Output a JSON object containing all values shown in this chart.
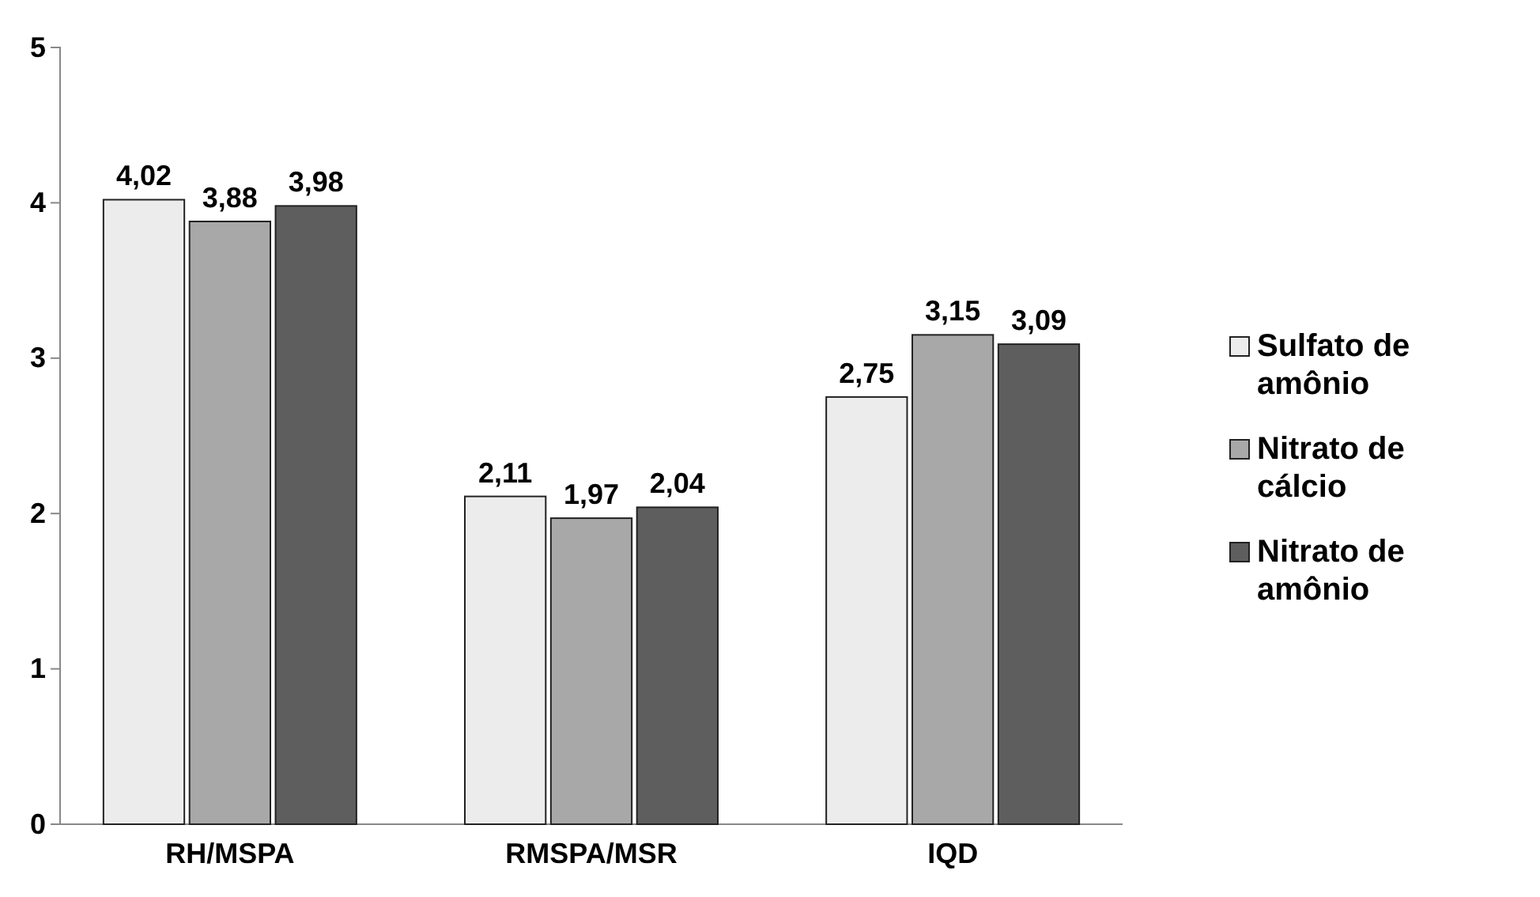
{
  "chart_data": {
    "type": "bar",
    "categories": [
      "RH/MSPA",
      "RMSPA/MSR",
      "IQD"
    ],
    "series": [
      {
        "name": "Sulfato de amônio",
        "color": "#ececec",
        "values": [
          4.02,
          2.11,
          2.75
        ],
        "value_labels": [
          "4,02",
          "2,11",
          "2,75"
        ]
      },
      {
        "name": "Nitrato de cálcio",
        "color": "#a8a8a8",
        "values": [
          3.88,
          1.97,
          3.15
        ],
        "value_labels": [
          "3,88",
          "1,97",
          "3,15"
        ]
      },
      {
        "name": "Nitrato de amônio",
        "color": "#5e5e5e",
        "values": [
          3.98,
          2.04,
          3.09
        ],
        "value_labels": [
          "3,98",
          "2,04",
          "3,09"
        ]
      }
    ],
    "ylim": [
      0,
      5
    ],
    "yticks": [
      0,
      1,
      2,
      3,
      4,
      5
    ],
    "grid": false,
    "legend": "right"
  }
}
